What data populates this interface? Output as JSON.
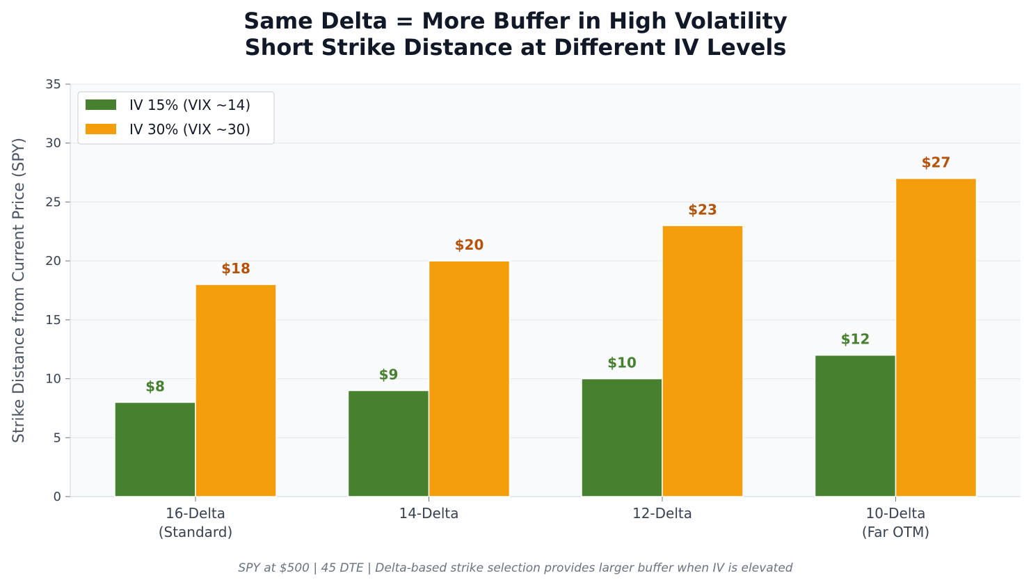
{
  "chart_data": {
    "type": "bar",
    "title_line1": "Same Delta = More Buffer in High Volatility",
    "title_line2": "Short Strike Distance at Different IV Levels",
    "xlabel": "",
    "ylabel": "Strike Distance from Current Price (SPY)",
    "ylim": [
      0,
      35
    ],
    "yticks": [
      "0",
      "5",
      "10",
      "15",
      "20",
      "25",
      "30",
      "35"
    ],
    "categories": [
      [
        "16-Delta",
        "(Standard)"
      ],
      [
        "14-Delta"
      ],
      [
        "12-Delta"
      ],
      [
        "10-Delta",
        "(Far OTM)"
      ]
    ],
    "series": [
      {
        "name": "IV 15% (VIX ~14)",
        "values": [
          8,
          9,
          10,
          12
        ],
        "labels": [
          "$8",
          "$9",
          "$10",
          "$12"
        ],
        "color": "#47812f",
        "label_color": "#47812f"
      },
      {
        "name": "IV 30% (VIX ~30)",
        "values": [
          18,
          20,
          23,
          27
        ],
        "labels": [
          "$18",
          "$20",
          "$23",
          "$27"
        ],
        "color": "#f59e0b",
        "label_color": "#b45309"
      }
    ],
    "grid": true,
    "legend_position": "top-left",
    "footnote": "SPY at $500 | 45 DTE | Delta-based strike selection provides larger buffer when IV is elevated"
  }
}
